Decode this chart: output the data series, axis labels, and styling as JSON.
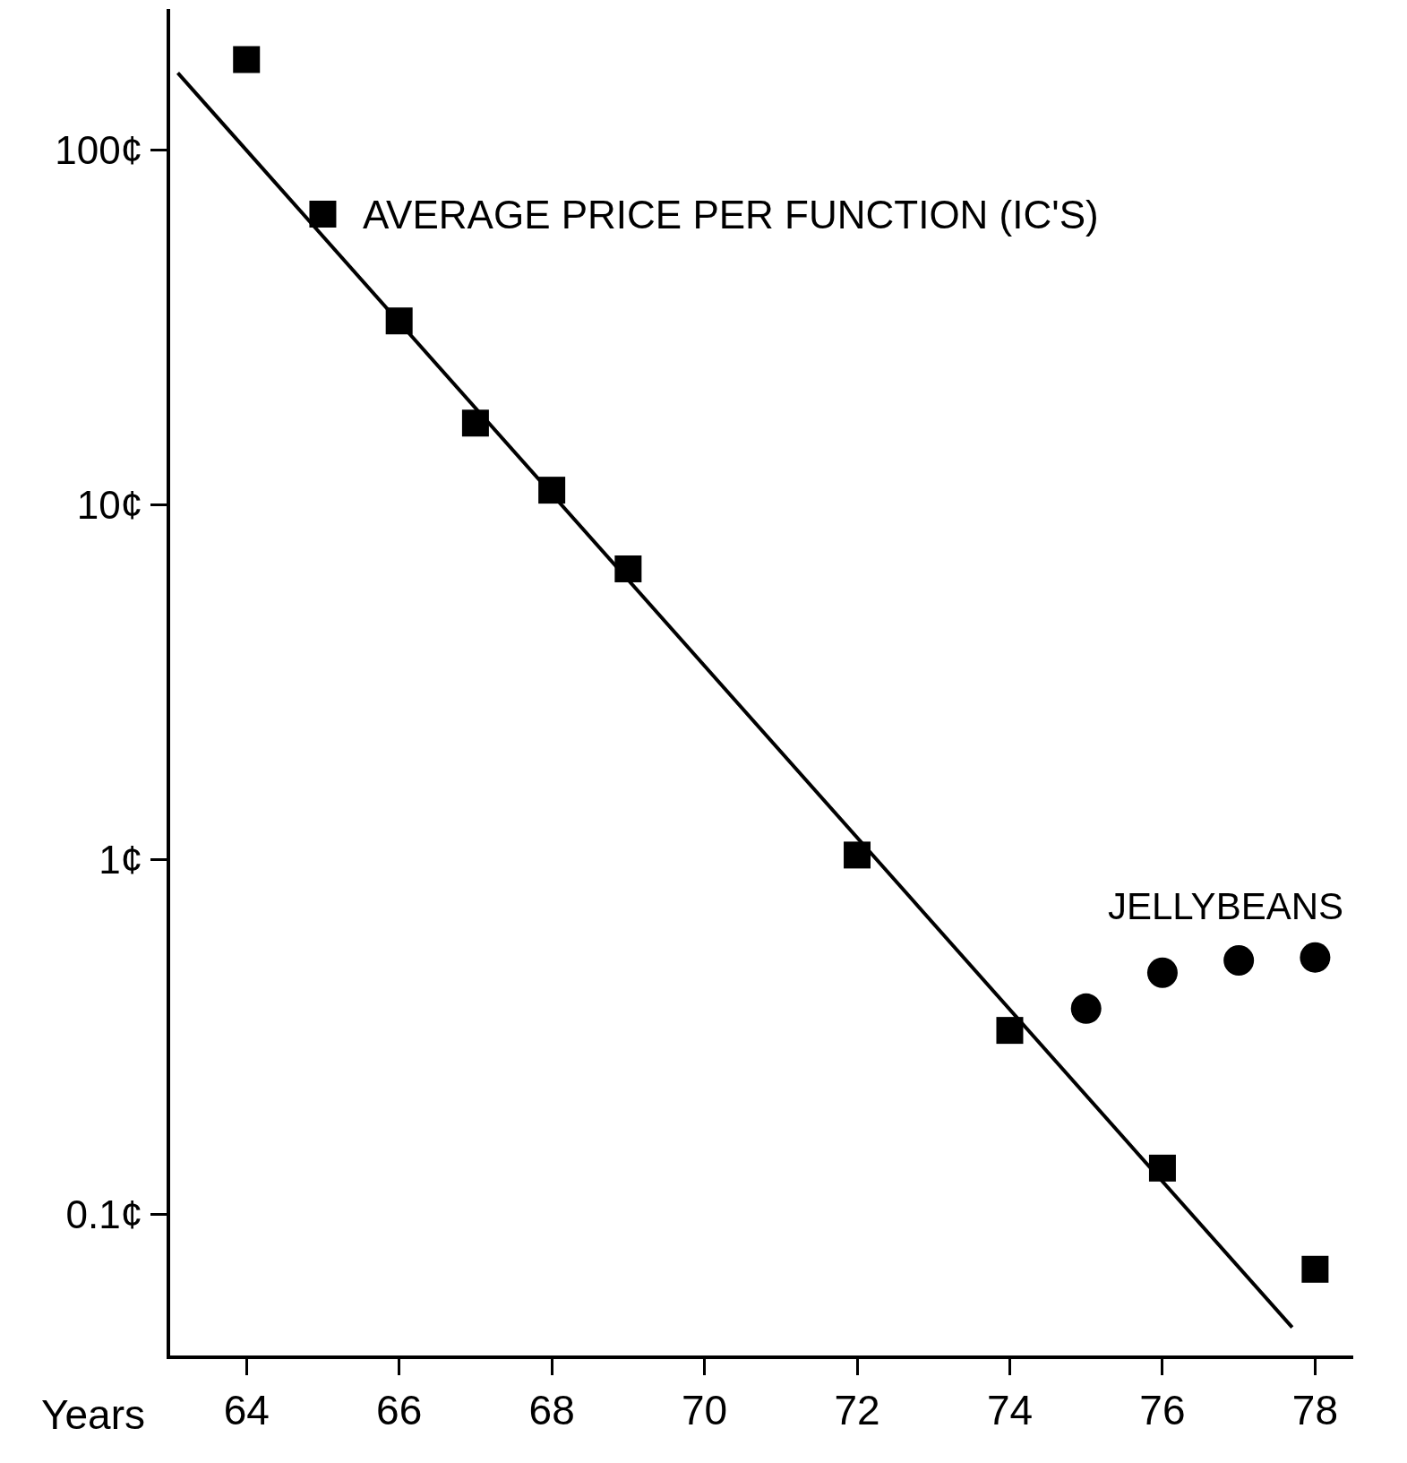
{
  "chart_data": {
    "type": "scatter",
    "xlabel": "Years",
    "log": "y",
    "grid": false,
    "xlim": [
      63,
      78.5
    ],
    "ylim": [
      0.04,
      250
    ],
    "xticks": [
      64,
      66,
      68,
      70,
      72,
      74,
      76,
      78
    ],
    "yticks": [
      {
        "value": 0.1,
        "label": "0.1¢"
      },
      {
        "value": 1,
        "label": "1¢"
      },
      {
        "value": 10,
        "label": "10¢"
      },
      {
        "value": 100,
        "label": "100¢"
      }
    ],
    "series": [
      {
        "name": "AVERAGE PRICE PER FUNCTION (IC'S)",
        "marker": "square",
        "color": "#000000",
        "x": [
          64,
          65,
          66,
          67,
          68,
          69,
          72,
          74,
          76,
          78
        ],
        "values": [
          180,
          66,
          33,
          17,
          11,
          6.6,
          1.03,
          0.33,
          0.135,
          0.07
        ]
      },
      {
        "name": "JELLYBEANS",
        "marker": "circle",
        "color": "#000000",
        "x": [
          75,
          76,
          77,
          78
        ],
        "values": [
          0.38,
          0.48,
          0.52,
          0.53
        ]
      },
      {
        "type": "line",
        "marker": "none",
        "line_style": "solid",
        "color": "#000000",
        "x": [
          63.1,
          77.7
        ],
        "values": [
          165,
          0.048
        ]
      }
    ]
  }
}
